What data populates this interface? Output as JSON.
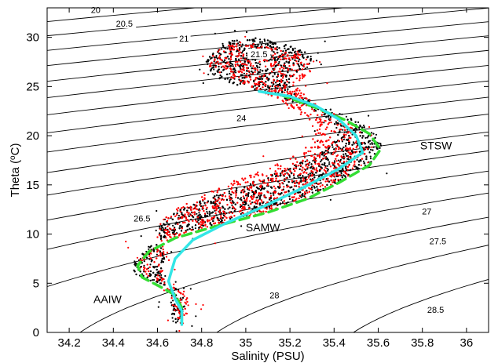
{
  "chart_data": {
    "type": "scatter",
    "title": "",
    "xlabel": "Salinity (PSU)",
    "ylabel_prefix": "Theta (",
    "ylabel_sup": "o",
    "ylabel_suffix": "C)",
    "xlim": [
      34.1,
      36.1
    ],
    "ylim": [
      0,
      33
    ],
    "x_ticks": [
      34.2,
      34.4,
      34.6,
      34.8,
      35,
      35.2,
      35.4,
      35.6,
      35.8,
      36
    ],
    "x_tick_labels": [
      "34.2",
      "34.4",
      "34.6",
      "34.8",
      "35",
      "35.2",
      "35.4",
      "35.6",
      "35.8",
      "36"
    ],
    "y_ticks": [
      0,
      5,
      10,
      15,
      20,
      25,
      30
    ],
    "y_tick_labels": [
      "0",
      "5",
      "10",
      "15",
      "20",
      "25",
      "30"
    ],
    "grid": false,
    "density_contours": {
      "levels": [
        20,
        20.5,
        21,
        21.5,
        22,
        22.5,
        23,
        23.5,
        24,
        24.5,
        25,
        25.5,
        26,
        26.5,
        27,
        27.5,
        28,
        28.5
      ],
      "labels": [
        {
          "text": "20",
          "x": 34.32,
          "y": 32.8
        },
        {
          "text": "20.5",
          "x": 34.45,
          "y": 31.4
        },
        {
          "text": "21",
          "x": 34.72,
          "y": 29.9
        },
        {
          "text": "21.5",
          "x": 35.06,
          "y": 28.3
        },
        {
          "text": "24",
          "x": 34.98,
          "y": 21.8
        },
        {
          "text": "26.5",
          "x": 34.53,
          "y": 11.6
        },
        {
          "text": "27",
          "x": 35.82,
          "y": 12.3
        },
        {
          "text": "27.5",
          "x": 35.87,
          "y": 9.3
        },
        {
          "text": "28",
          "x": 35.13,
          "y": 3.8
        },
        {
          "text": "28.5",
          "x": 35.86,
          "y": 2.3
        }
      ]
    },
    "series": [
      {
        "color": "#000000",
        "marker": "dot",
        "envelope": [
          [
            34.7,
            1.0
          ],
          [
            34.73,
            3.0
          ],
          [
            34.69,
            4.5
          ],
          [
            34.6,
            5.0
          ],
          [
            34.5,
            5.8
          ],
          [
            34.48,
            7.2
          ],
          [
            34.56,
            8.8
          ],
          [
            34.72,
            10.2
          ],
          [
            34.95,
            11.5
          ],
          [
            35.15,
            12.8
          ],
          [
            35.32,
            14.2
          ],
          [
            35.46,
            15.8
          ],
          [
            35.58,
            17.5
          ],
          [
            35.62,
            19.0
          ],
          [
            35.58,
            20.5
          ],
          [
            35.48,
            21.8
          ],
          [
            35.35,
            23.0
          ],
          [
            35.2,
            24.6
          ],
          [
            35.2,
            25.8
          ],
          [
            35.3,
            27.0
          ],
          [
            35.3,
            28.2
          ],
          [
            35.18,
            29.3
          ],
          [
            35.02,
            30.2
          ],
          [
            34.9,
            29.5
          ],
          [
            34.84,
            28.2
          ],
          [
            34.8,
            26.8
          ],
          [
            34.9,
            25.6
          ],
          [
            35.1,
            24.2
          ],
          [
            35.28,
            23.0
          ],
          [
            35.38,
            21.6
          ],
          [
            35.42,
            19.8
          ],
          [
            35.34,
            18.2
          ],
          [
            35.18,
            16.6
          ],
          [
            35.0,
            15.0
          ],
          [
            34.82,
            13.6
          ],
          [
            34.66,
            12.2
          ],
          [
            34.6,
            10.6
          ],
          [
            34.62,
            9.0
          ],
          [
            34.64,
            7.8
          ],
          [
            34.62,
            6.6
          ],
          [
            34.63,
            5.4
          ],
          [
            34.66,
            3.2
          ],
          [
            34.67,
            1.0
          ]
        ]
      },
      {
        "color": "#ff0000",
        "marker": "dot",
        "envelope": [
          [
            34.71,
            0.6
          ],
          [
            34.75,
            2.8
          ],
          [
            34.72,
            4.4
          ],
          [
            34.62,
            5.0
          ],
          [
            34.52,
            6.2
          ],
          [
            34.52,
            7.8
          ],
          [
            34.65,
            9.4
          ],
          [
            34.85,
            10.6
          ],
          [
            35.1,
            12.2
          ],
          [
            35.28,
            13.8
          ],
          [
            35.42,
            15.4
          ],
          [
            35.52,
            17.0
          ],
          [
            35.56,
            18.8
          ],
          [
            35.52,
            20.4
          ],
          [
            35.42,
            22.0
          ],
          [
            35.3,
            23.4
          ],
          [
            35.22,
            25.2
          ],
          [
            35.3,
            26.6
          ],
          [
            35.28,
            28.0
          ],
          [
            35.14,
            29.0
          ],
          [
            34.96,
            29.6
          ],
          [
            34.86,
            28.6
          ],
          [
            34.82,
            27.2
          ],
          [
            34.95,
            25.6
          ],
          [
            35.12,
            24.0
          ],
          [
            35.24,
            22.4
          ],
          [
            35.32,
            20.4
          ],
          [
            35.26,
            18.4
          ],
          [
            35.08,
            16.6
          ],
          [
            34.9,
            15.0
          ],
          [
            34.72,
            13.0
          ],
          [
            34.6,
            11.4
          ],
          [
            34.6,
            9.6
          ],
          [
            34.66,
            7.6
          ],
          [
            34.62,
            6.0
          ],
          [
            34.65,
            4.0
          ],
          [
            34.68,
            2.0
          ]
        ]
      },
      {
        "color": "#33dd33",
        "line_style": "dashed",
        "points": [
          [
            34.71,
            1.0
          ],
          [
            34.71,
            2.5
          ],
          [
            34.68,
            3.8
          ],
          [
            34.6,
            4.8
          ],
          [
            34.53,
            5.6
          ],
          [
            34.51,
            6.8
          ],
          [
            34.56,
            8.2
          ],
          [
            34.68,
            9.6
          ],
          [
            34.88,
            10.9
          ],
          [
            35.1,
            12.2
          ],
          [
            35.28,
            13.6
          ],
          [
            35.42,
            15.2
          ],
          [
            35.56,
            17.0
          ],
          [
            35.61,
            18.6
          ],
          [
            35.56,
            20.2
          ],
          [
            35.45,
            21.6
          ],
          [
            35.3,
            23.0
          ],
          [
            35.14,
            24.3
          ]
        ]
      },
      {
        "color": "#33e6e6",
        "line_style": "solid",
        "points": [
          [
            34.71,
            0.8
          ],
          [
            34.71,
            2.2
          ],
          [
            34.68,
            3.4
          ],
          [
            34.65,
            5.2
          ],
          [
            34.68,
            7.5
          ],
          [
            34.76,
            9.4
          ],
          [
            34.9,
            11.0
          ],
          [
            35.08,
            12.8
          ],
          [
            35.25,
            14.6
          ],
          [
            35.42,
            16.6
          ],
          [
            35.53,
            18.3
          ],
          [
            35.5,
            20.0
          ],
          [
            35.42,
            21.7
          ],
          [
            35.32,
            23.0
          ],
          [
            35.2,
            24.0
          ],
          [
            35.06,
            24.5
          ]
        ]
      }
    ],
    "annotations": [
      {
        "text": "STSW",
        "x": 35.79,
        "y": 18.6
      },
      {
        "text": "SAMW",
        "x": 35.0,
        "y": 10.3
      },
      {
        "text": "AAIW",
        "x": 34.31,
        "y": 3.0
      }
    ]
  }
}
